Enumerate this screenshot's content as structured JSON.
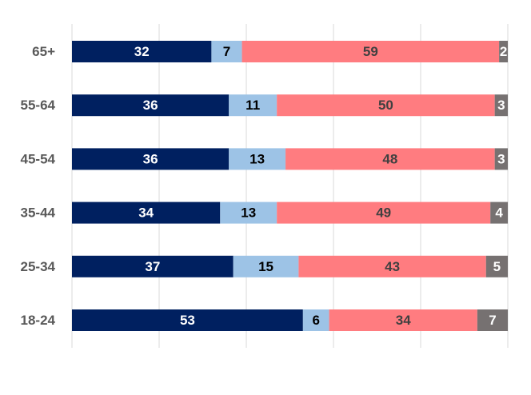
{
  "chart_data": {
    "type": "bar",
    "orientation": "horizontal",
    "stacked": true,
    "categories": [
      "65+",
      "55-64",
      "45-54",
      "35-44",
      "25-34",
      "18-24"
    ],
    "series": [
      {
        "values": [
          32,
          36,
          36,
          34,
          37,
          53
        ],
        "color": "#002060",
        "label_color": "#ffffff"
      },
      {
        "values": [
          7,
          11,
          13,
          13,
          15,
          6
        ],
        "color": "#9DC3E6",
        "label_color": "#000000"
      },
      {
        "values": [
          59,
          50,
          48,
          49,
          43,
          34
        ],
        "color": "#FF7C80",
        "label_color": "#404040"
      },
      {
        "values": [
          2,
          3,
          3,
          4,
          5,
          7
        ],
        "color": "#767171",
        "label_color": "#ffffff"
      }
    ],
    "xlim": [
      0,
      100
    ],
    "grid": true,
    "gridline_color": "#d9d9d9",
    "legend": false,
    "title": "",
    "xlabel": "",
    "ylabel": ""
  }
}
